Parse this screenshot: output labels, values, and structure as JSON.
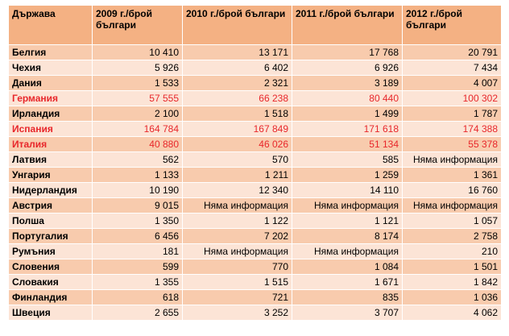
{
  "table": {
    "headers": [
      "Държава",
      "2009 г./брой българи",
      "2010 г./брой българи",
      "2011 г./брой българи",
      "2012 г./брой българи"
    ],
    "rows": [
      {
        "country": "Белгия",
        "v2009": "10 410",
        "v2010": "13 171",
        "v2011": "17 768",
        "v2012": "20 791",
        "highlight": false
      },
      {
        "country": "Чехия",
        "v2009": "5 926",
        "v2010": "6 402",
        "v2011": "6 926",
        "v2012": "7 434",
        "highlight": false
      },
      {
        "country": "Дания",
        "v2009": "1 533",
        "v2010": "2 321",
        "v2011": "3 189",
        "v2012": "4 007",
        "highlight": false
      },
      {
        "country": "Германия",
        "v2009": "57 555",
        "v2010": "66 238",
        "v2011": "80 440",
        "v2012": "100 302",
        "highlight": true
      },
      {
        "country": "Ирландия",
        "v2009": "2 100",
        "v2010": "1 518",
        "v2011": "1 499",
        "v2012": "1 787",
        "highlight": false
      },
      {
        "country": "Испания",
        "v2009": "164 784",
        "v2010": "167 849",
        "v2011": "171 618",
        "v2012": "174 388",
        "highlight": true
      },
      {
        "country": "Италия",
        "v2009": "40 880",
        "v2010": "46 026",
        "v2011": "51 134",
        "v2012": "55 378",
        "highlight": true
      },
      {
        "country": "Латвия",
        "v2009": "562",
        "v2010": "570",
        "v2011": "585",
        "v2012": "Няма информация",
        "highlight": false
      },
      {
        "country": "Унгария",
        "v2009": "1 133",
        "v2010": "1 211",
        "v2011": "1 259",
        "v2012": "1 361",
        "highlight": false
      },
      {
        "country": "Нидерландия",
        "v2009": "10 190",
        "v2010": "12 340",
        "v2011": "14 110",
        "v2012": "16 760",
        "highlight": false
      },
      {
        "country": "Австрия",
        "v2009": "9 015",
        "v2010": "Няма информация",
        "v2011": "Няма информация",
        "v2012": "Няма информация",
        "highlight": false
      },
      {
        "country": "Полша",
        "v2009": "1 350",
        "v2010": "1 122",
        "v2011": "1 121",
        "v2012": "1 057",
        "highlight": false
      },
      {
        "country": "Португалия",
        "v2009": "6 456",
        "v2010": "7 202",
        "v2011": "8 174",
        "v2012": "2 758",
        "highlight": false
      },
      {
        "country": "Румъния",
        "v2009": "181",
        "v2010": "Няма информация",
        "v2011": "Няма информация",
        "v2012": "210",
        "highlight": false
      },
      {
        "country": "Словения",
        "v2009": "599",
        "v2010": "770",
        "v2011": "1 084",
        "v2012": "1 501",
        "highlight": false
      },
      {
        "country": "Словакия",
        "v2009": "1 355",
        "v2010": "1 515",
        "v2011": "1 671",
        "v2012": "1 842",
        "highlight": false
      },
      {
        "country": "Финландия",
        "v2009": "618",
        "v2010": "721",
        "v2011": "835",
        "v2012": "1 036",
        "highlight": false
      },
      {
        "country": "Швеция",
        "v2009": "2 655",
        "v2010": "3 252",
        "v2011": "3 707",
        "v2012": "4 062",
        "highlight": false
      }
    ]
  },
  "colors": {
    "header_bg": "#f4b183",
    "row_dark": "#f8cbad",
    "row_light": "#fce4d6",
    "highlight_text": "#e8272b"
  }
}
